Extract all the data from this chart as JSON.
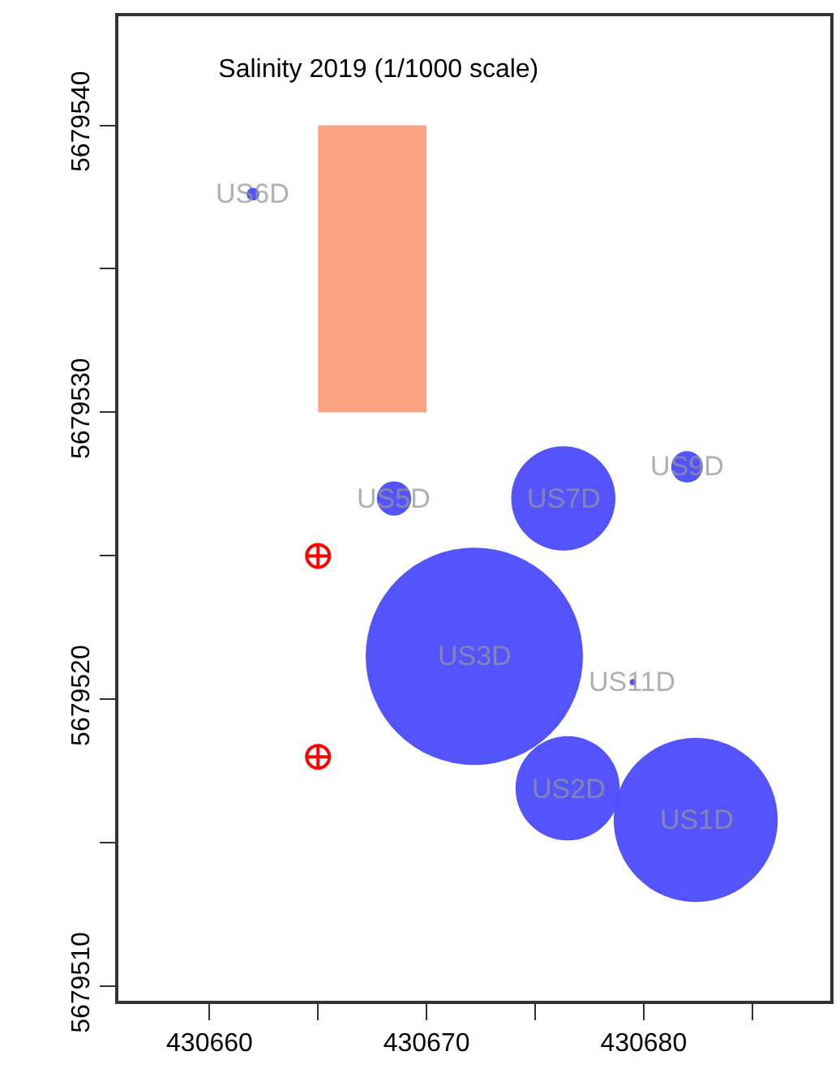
{
  "chart_data": {
    "type": "bubble",
    "title": "Salinity 2019 (1/1000 scale)",
    "xlim": [
      430655.8,
      430688.6
    ],
    "ylim": [
      5679509.5,
      5679543.8
    ],
    "xticks": [
      430660,
      {
        "value": 430665,
        "label": null
      },
      430670,
      {
        "value": 430675,
        "label": null
      },
      430680,
      {
        "value": 430685,
        "label": null
      }
    ],
    "yticks": [
      {
        "value": 5679510,
        "label": "5679510"
      },
      {
        "value": 5679515,
        "label": null
      },
      {
        "value": 5679520,
        "label": "5679520"
      },
      {
        "value": 5679525,
        "label": null
      },
      {
        "value": 5679530,
        "label": "5679530"
      },
      {
        "value": 5679535,
        "label": null
      },
      {
        "value": 5679540,
        "label": "5679540"
      }
    ],
    "series": [
      {
        "type": "bar",
        "color": "#f9a383",
        "x": [
          430667.5
        ],
        "base": [
          5679530
        ],
        "values": [
          10
        ]
      },
      {
        "color": "#4b4bff",
        "marker": "circle",
        "x": [
          430662.0,
          430668.5,
          430676.3,
          430682.0,
          430672.2,
          430679.5,
          430676.5,
          430682.4
        ],
        "values": [
          5679537.6,
          5679527.0,
          5679527.0,
          5679528.1,
          5679521.5,
          5679520.6,
          5679516.9,
          5679515.8
        ],
        "sizes": [
          0.0034,
          0.025,
          0.23,
          0.021,
          1,
          0.0008,
          0.23,
          0.57
        ]
      },
      {
        "type": "scatter",
        "color": "#ff0000",
        "marker": "cross",
        "x": [
          430665,
          430665
        ],
        "values": [
          5679525,
          5679518.0
        ]
      }
    ],
    "annotations": [
      {
        "text": "US6D",
        "x": 430662.0,
        "y": 5679537.6
      },
      {
        "text": "US5D",
        "x": 430668.5,
        "y": 5679527.0
      },
      {
        "text": "US7D",
        "x": 430676.3,
        "y": 5679527.0
      },
      {
        "text": "US9D",
        "x": 430682.0,
        "y": 5679528.1
      },
      {
        "text": "US3D",
        "x": 430672.2,
        "y": 5679521.5
      },
      {
        "text": "US11D",
        "x": 430679.5,
        "y": 5679520.6
      },
      {
        "text": "US2D",
        "x": 430676.5,
        "y": 5679516.9
      },
      {
        "text": "US1D",
        "x": 430682.4,
        "y": 5679515.8
      }
    ]
  }
}
